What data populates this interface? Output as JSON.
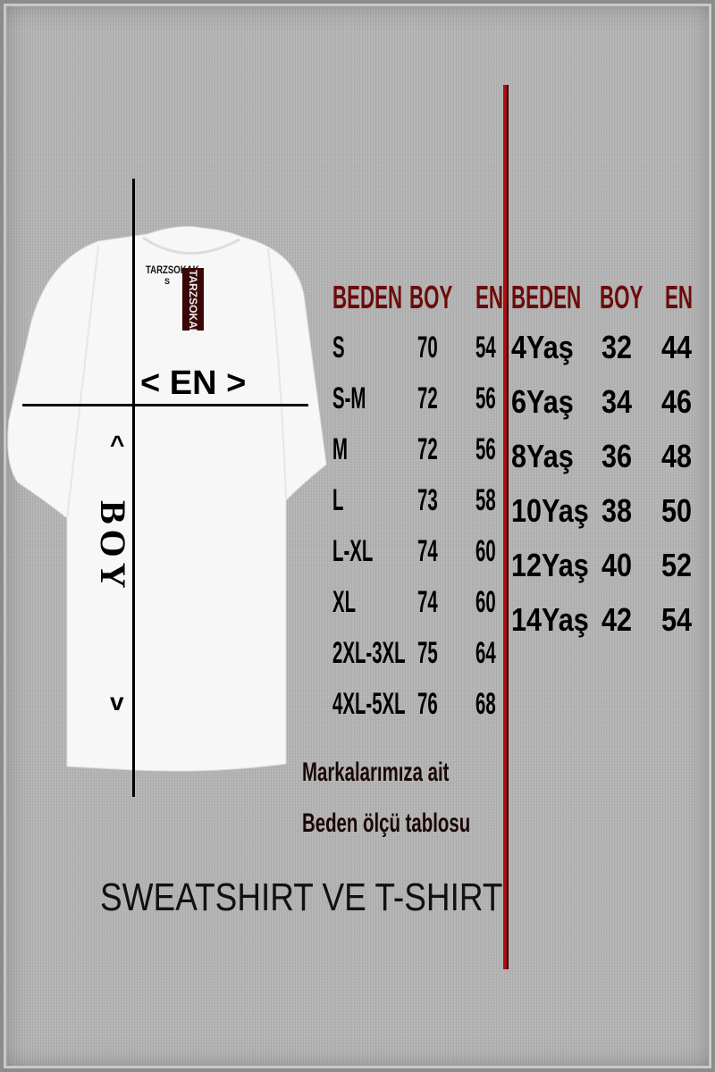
{
  "brand_label": "TARZSOKAK",
  "neck_size": "S",
  "diagram": {
    "width_label": "< EN >",
    "length_label": "BOY",
    "arrow_up": "^",
    "arrow_down": "v"
  },
  "adult_table": {
    "headers": [
      "BEDEN",
      "BOY",
      "EN"
    ],
    "rows": [
      [
        "S",
        "70",
        "54"
      ],
      [
        "S-M",
        "72",
        "56"
      ],
      [
        "M",
        "72",
        "56"
      ],
      [
        "L",
        "73",
        "58"
      ],
      [
        "L-XL",
        "74",
        "60"
      ],
      [
        "XL",
        "74",
        "60"
      ],
      [
        "2XL-3XL",
        "75",
        "64"
      ],
      [
        "4XL-5XL",
        "76",
        "68"
      ]
    ]
  },
  "kids_table": {
    "headers": [
      "BEDEN",
      "BOY",
      "EN"
    ],
    "rows": [
      [
        "4Yaş",
        "32",
        "44"
      ],
      [
        "6Yaş",
        "34",
        "46"
      ],
      [
        "8Yaş",
        "36",
        "48"
      ],
      [
        "10Yaş",
        "38",
        "50"
      ],
      [
        "12Yaş",
        "40",
        "52"
      ],
      [
        "14Yaş",
        "42",
        "54"
      ]
    ]
  },
  "note_line1": "Markalarımıza ait",
  "note_line2": "Beden ölçü tablosu",
  "title": "SWEATSHIRT VE T-SHIRT",
  "colors": {
    "header": "#6e0a0a",
    "divider": "#b00d0d",
    "background": "#b4b4b4"
  }
}
